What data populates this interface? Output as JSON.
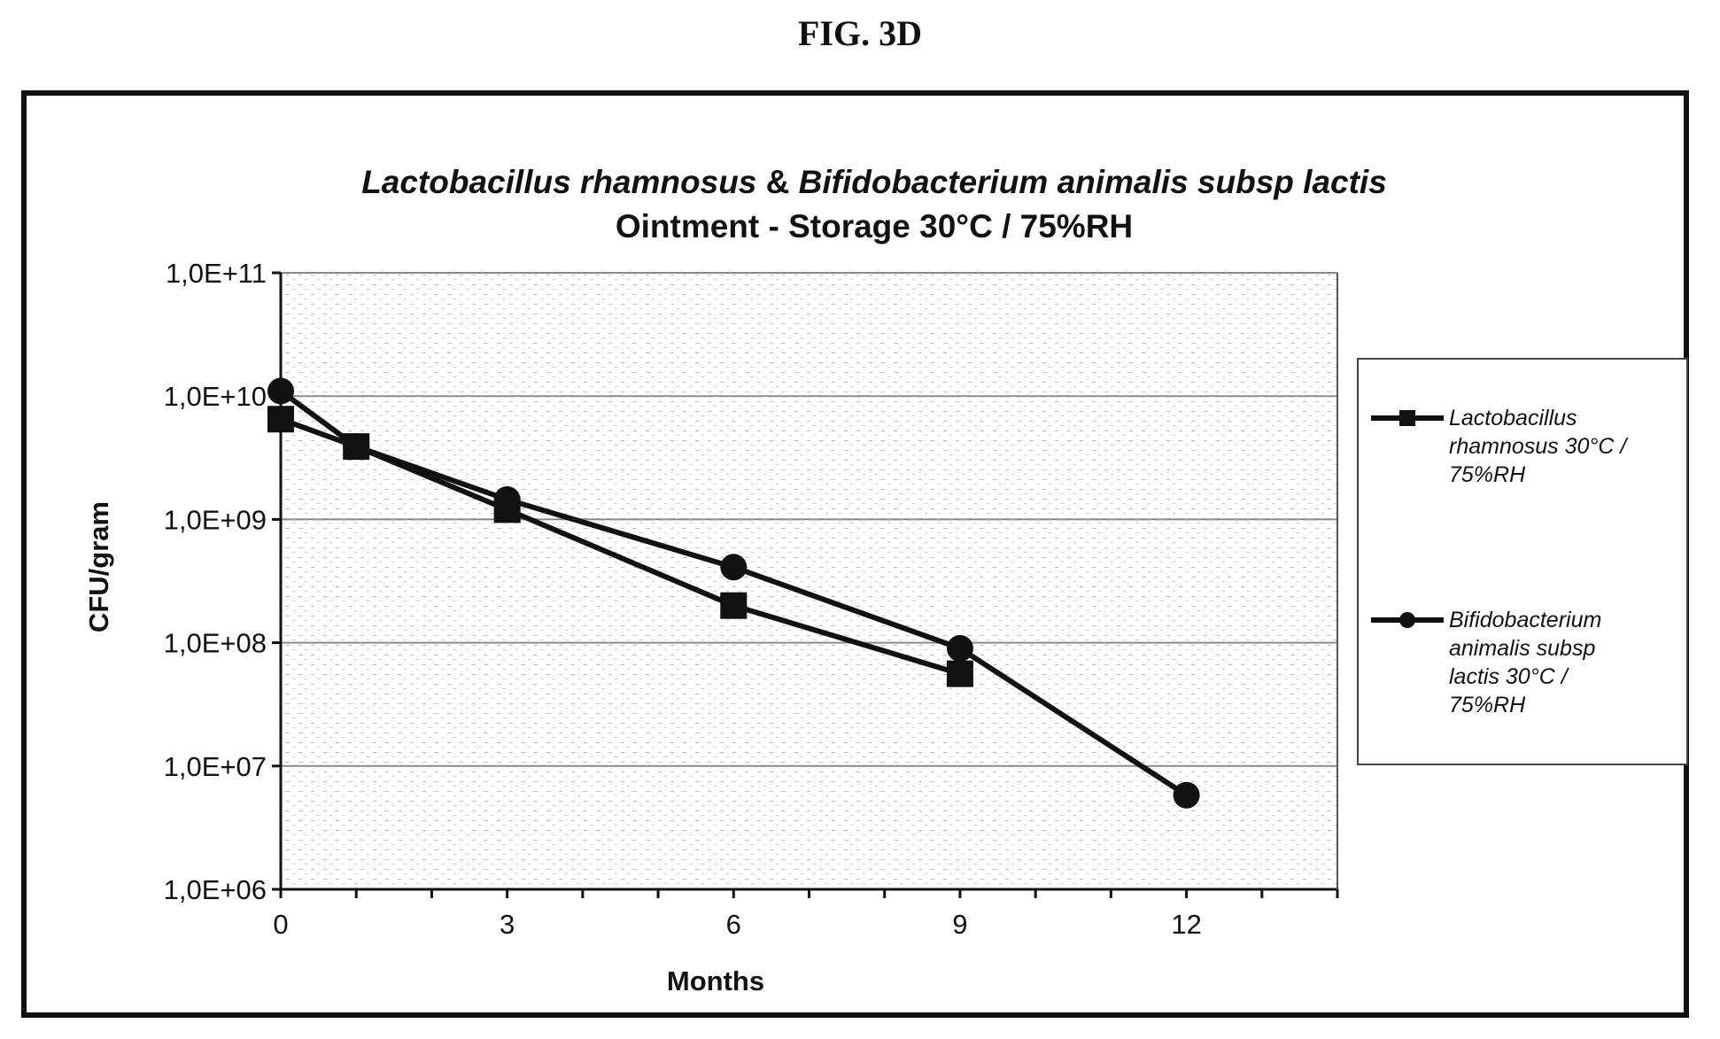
{
  "figure_label": "FIG. 3D",
  "chart_data": {
    "type": "line",
    "title_parts": [
      {
        "text": "Lactobacillus rhamnosus",
        "italic": true
      },
      {
        "text": " & ",
        "italic": false
      },
      {
        "text": "Bifidobacterium animalis subsp lactis",
        "italic": true
      }
    ],
    "subtitle": "Ointment - Storage 30°C / 75%RH",
    "xlabel": "Months",
    "ylabel": "CFU/gram",
    "x_ticks": [
      0,
      3,
      6,
      9,
      12
    ],
    "xlim": [
      0,
      14
    ],
    "y_scale": "log",
    "ylim": [
      1000000,
      100000000000
    ],
    "y_ticks": [
      {
        "value": 100000000000,
        "label": "1,0E+11"
      },
      {
        "value": 10000000000,
        "label": "1,0E+10"
      },
      {
        "value": 1000000000,
        "label": "1,0E+09"
      },
      {
        "value": 100000000,
        "label": "1,0E+08"
      },
      {
        "value": 10000000,
        "label": "1,0E+07"
      },
      {
        "value": 1000000,
        "label": "1,0E+06"
      }
    ],
    "grid": true,
    "legend_position": "right",
    "series": [
      {
        "name": "Lactobacillus rhamnosus 30°C / 75%RH",
        "legend_lines": [
          "Lactobacillus",
          "rhamnosus 30°C /",
          "75%RH"
        ],
        "marker": "square",
        "color": "#111111",
        "x": [
          0,
          1,
          3,
          6,
          9
        ],
        "y": [
          6500000000,
          3900000000,
          1200000000,
          200000000,
          56000000
        ]
      },
      {
        "name": "Bifidobacterium animalis subsp lactis 30°C / 75%RH",
        "legend_lines": [
          "Bifidobacterium",
          "animalis subsp",
          "lactis 30°C /",
          "75%RH"
        ],
        "marker": "circle",
        "color": "#111111",
        "x": [
          0,
          1,
          3,
          6,
          9,
          12
        ],
        "y": [
          11000000000,
          3900000000,
          1450000000,
          410000000,
          90000000,
          5800000
        ]
      }
    ]
  }
}
